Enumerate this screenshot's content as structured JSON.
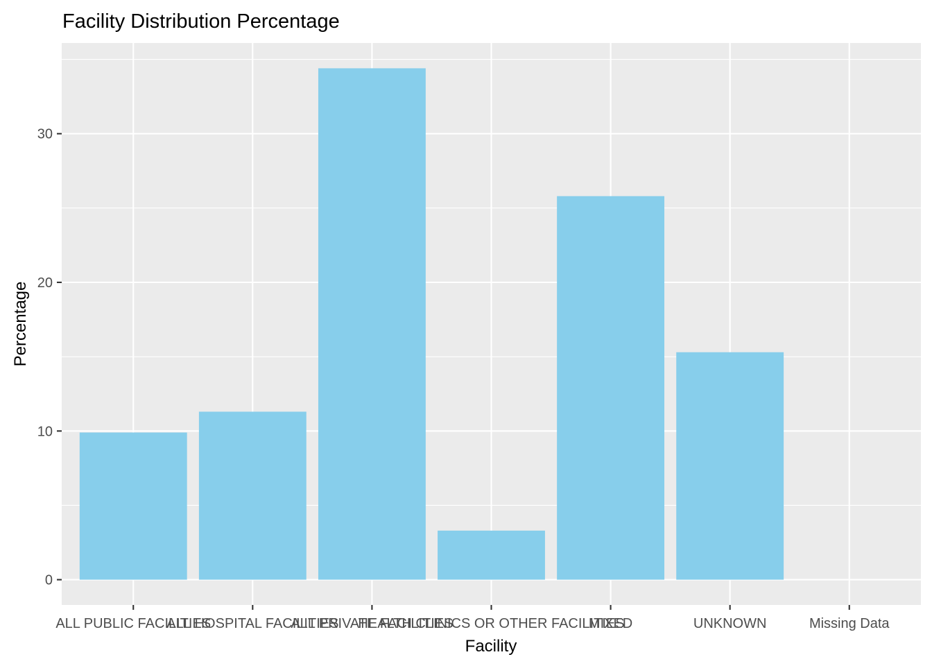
{
  "chart_data": {
    "type": "bar",
    "title": "Facility Distribution Percentage",
    "xlabel": "Facility",
    "ylabel": "Percentage",
    "categories": [
      "ALL PUBLIC FACILITIES",
      "ALL HOSPITAL FACILITIES",
      "ALL PRIVATE FACILITIES",
      "HEALTH CLINICS OR OTHER FACILITIES",
      "MIXED",
      "UNKNOWN",
      "Missing Data"
    ],
    "values": [
      9.9,
      11.3,
      34.4,
      3.3,
      25.8,
      15.3,
      0
    ],
    "ylim": [
      -1.7,
      36.1
    ],
    "yticks": [
      0,
      10,
      20,
      30
    ],
    "grid": true,
    "legend": "none",
    "colors": {
      "bar": "#87CEEB",
      "panel": "#EBEBEB",
      "grid": "#FFFFFF",
      "tick_mark": "#333333"
    }
  }
}
